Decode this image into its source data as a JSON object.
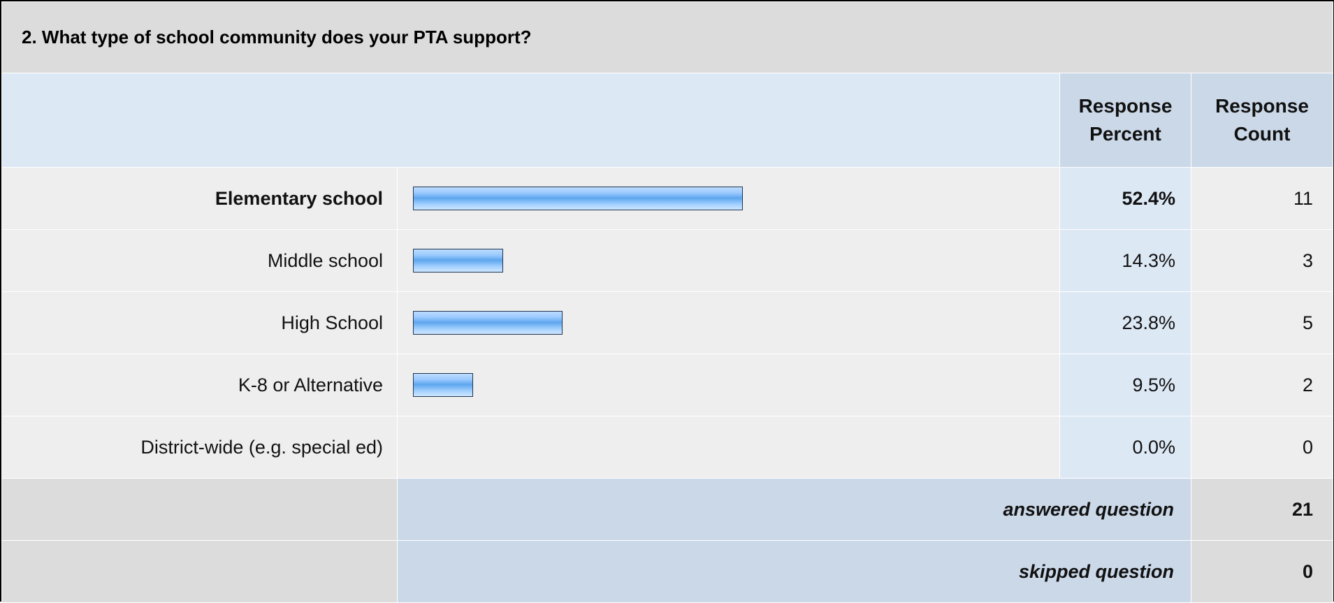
{
  "question": {
    "title": "2. What type of school community does your PTA support?"
  },
  "headers": {
    "percent": "Response Percent",
    "count": "Response Count"
  },
  "colors": {
    "bar_fill": "#6eb0f2",
    "bar_border": "#1f3550",
    "header_bg": "#cbd8e8",
    "row_bg": "#eeeeee"
  },
  "chart_data": {
    "type": "bar",
    "orientation": "horizontal",
    "title": "2. What type of school community does your PTA support?",
    "categories": [
      "Elementary school",
      "Middle school",
      "High School",
      "K-8 or Alternative",
      "District-wide (e.g. special ed)"
    ],
    "values": [
      52.4,
      14.3,
      23.8,
      9.5,
      0.0
    ],
    "value_labels": [
      "52.4%",
      "14.3%",
      "23.8%",
      "9.5%",
      "0.0%"
    ],
    "counts": [
      "11",
      "3",
      "5",
      "2",
      "0"
    ],
    "xlim": [
      0,
      100
    ],
    "grid": false,
    "legend": "none"
  },
  "summary": {
    "answered_label": "answered question",
    "answered_value": "21",
    "skipped_label": "skipped question",
    "skipped_value": "0"
  }
}
